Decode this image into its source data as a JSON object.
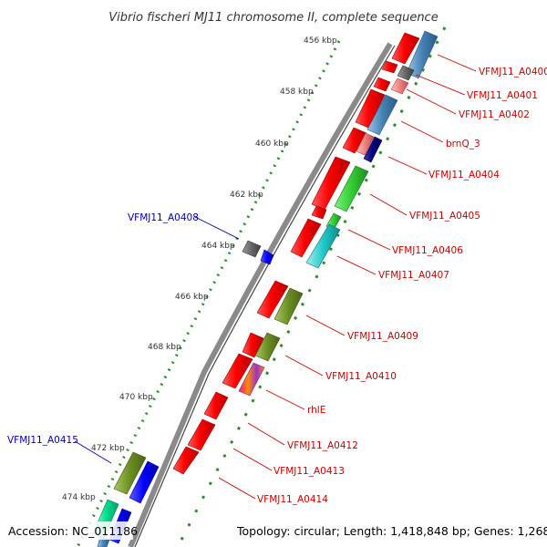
{
  "title": "Vibrio fischeri MJ11 chromosome II, complete sequence",
  "accession": "Accession: NC_011186",
  "topology": "Topology: circular; Length: 1,418,848 bp; Genes: 1,268",
  "colors": {
    "backbone": "#8a8a8a",
    "tick": "#2e8b2e",
    "reverse_label": "#cc0000",
    "forward_label": "#0000aa"
  },
  "ticks": [
    "456 kbp",
    "458 kbp",
    "460 kbp",
    "462 kbp",
    "464 kbp",
    "466 kbp",
    "468 kbp",
    "470 kbp",
    "472 kbp",
    "474 kbp"
  ],
  "labels": {
    "VFMJ11_A0400": "VFMJ11_A0400",
    "VFMJ11_A0401": "VFMJ11_A0401",
    "VFMJ11_A0402": "VFMJ11_A0402",
    "brnQ_3": "brnQ_3",
    "VFMJ11_A0404": "VFMJ11_A0404",
    "VFMJ11_A0405": "VFMJ11_A0405",
    "VFMJ11_A0406": "VFMJ11_A0406",
    "VFMJ11_A0407": "VFMJ11_A0407",
    "VFMJ11_A0408": "VFMJ11_A0408",
    "VFMJ11_A0409": "VFMJ11_A0409",
    "VFMJ11_A0410": "VFMJ11_A0410",
    "rhlE": "rhlE",
    "VFMJ11_A0412": "VFMJ11_A0412",
    "VFMJ11_A0413": "VFMJ11_A0413",
    "VFMJ11_A0414": "VFMJ11_A0414",
    "VFMJ11_A0415": "VFMJ11_A0415"
  }
}
